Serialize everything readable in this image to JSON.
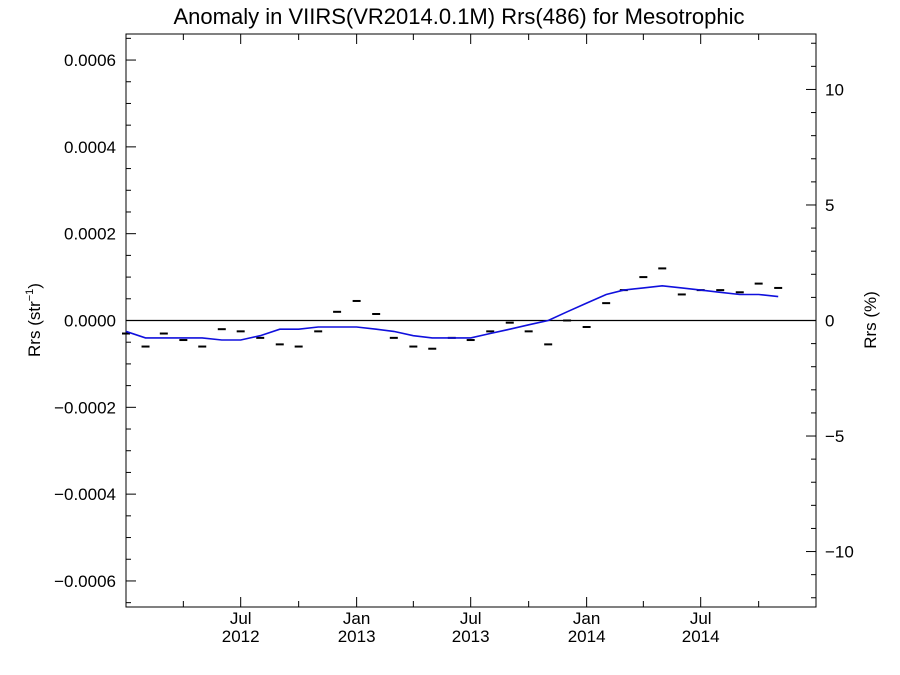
{
  "chart_data": {
    "type": "line",
    "title": "Anomaly in VIIRS(VR2014.0.1M) Rrs(486) for Mesotrophic",
    "ylabel": "Rrs (str",
    "ylabel_superscript": "−1",
    "ylabel_suffix": ")",
    "y2label": "Rrs (%)",
    "xlim": [
      "2012-01-01",
      "2014-12-31"
    ],
    "ylim": [
      -0.00066,
      0.00066
    ],
    "y2lim": [
      -12.4,
      12.4
    ],
    "grid": false,
    "zero_line": true,
    "yticks": [
      {
        "value": -0.0006,
        "label": "−0.0006"
      },
      {
        "value": -0.0004,
        "label": "−0.0004"
      },
      {
        "value": -0.0002,
        "label": "−0.0002"
      },
      {
        "value": 0.0,
        "label": "0.0000"
      },
      {
        "value": 0.0002,
        "label": "0.0002"
      },
      {
        "value": 0.0004,
        "label": "0.0004"
      },
      {
        "value": 0.0006,
        "label": "0.0006"
      }
    ],
    "y2ticks": [
      {
        "value": -10,
        "label": "−10"
      },
      {
        "value": -5,
        "label": "−5"
      },
      {
        "value": 0,
        "label": "0"
      },
      {
        "value": 5,
        "label": "5"
      },
      {
        "value": 10,
        "label": "10"
      }
    ],
    "xticks": [
      {
        "date": "2012-07-01",
        "month": "Jul",
        "year": "2012"
      },
      {
        "date": "2013-01-01",
        "month": "Jan",
        "year": "2013"
      },
      {
        "date": "2013-07-01",
        "month": "Jul",
        "year": "2013"
      },
      {
        "date": "2014-01-01",
        "month": "Jan",
        "year": "2014"
      },
      {
        "date": "2014-07-01",
        "month": "Jul",
        "year": "2014"
      }
    ],
    "series": [
      {
        "kind": "monthly_marks",
        "color": "#000000",
        "points": [
          {
            "x": "2012-01-01",
            "y": -3e-05
          },
          {
            "x": "2012-02-01",
            "y": -6e-05
          },
          {
            "x": "2012-03-01",
            "y": -3e-05
          },
          {
            "x": "2012-04-01",
            "y": -4.5e-05
          },
          {
            "x": "2012-05-01",
            "y": -6e-05
          },
          {
            "x": "2012-06-01",
            "y": -2e-05
          },
          {
            "x": "2012-07-01",
            "y": -2.5e-05
          },
          {
            "x": "2012-08-01",
            "y": -4e-05
          },
          {
            "x": "2012-09-01",
            "y": -5.5e-05
          },
          {
            "x": "2012-10-01",
            "y": -6e-05
          },
          {
            "x": "2012-11-01",
            "y": -2.5e-05
          },
          {
            "x": "2012-12-01",
            "y": 2e-05
          },
          {
            "x": "2013-01-01",
            "y": 4.5e-05
          },
          {
            "x": "2013-02-01",
            "y": 1.5e-05
          },
          {
            "x": "2013-03-01",
            "y": -4e-05
          },
          {
            "x": "2013-04-01",
            "y": -6e-05
          },
          {
            "x": "2013-05-01",
            "y": -6.5e-05
          },
          {
            "x": "2013-06-01",
            "y": -4e-05
          },
          {
            "x": "2013-07-01",
            "y": -4.5e-05
          },
          {
            "x": "2013-08-01",
            "y": -2.5e-05
          },
          {
            "x": "2013-09-01",
            "y": -5e-06
          },
          {
            "x": "2013-10-01",
            "y": -2.5e-05
          },
          {
            "x": "2013-11-01",
            "y": -5.5e-05
          },
          {
            "x": "2013-12-01",
            "y": 0.0
          },
          {
            "x": "2014-01-01",
            "y": -1.5e-05
          },
          {
            "x": "2014-02-01",
            "y": 4e-05
          },
          {
            "x": "2014-03-01",
            "y": 7e-05
          },
          {
            "x": "2014-04-01",
            "y": 0.0001
          },
          {
            "x": "2014-05-01",
            "y": 0.00012
          },
          {
            "x": "2014-06-01",
            "y": 6e-05
          },
          {
            "x": "2014-07-01",
            "y": 7e-05
          },
          {
            "x": "2014-08-01",
            "y": 7e-05
          },
          {
            "x": "2014-09-01",
            "y": 6.5e-05
          },
          {
            "x": "2014-10-01",
            "y": 8.5e-05
          },
          {
            "x": "2014-11-01",
            "y": 7.5e-05
          }
        ]
      },
      {
        "kind": "smoothed_line",
        "color": "#1010dd",
        "points": [
          {
            "x": "2012-01-01",
            "y": -2.5e-05
          },
          {
            "x": "2012-02-01",
            "y": -4e-05
          },
          {
            "x": "2012-03-01",
            "y": -4e-05
          },
          {
            "x": "2012-04-01",
            "y": -4e-05
          },
          {
            "x": "2012-05-01",
            "y": -4e-05
          },
          {
            "x": "2012-06-01",
            "y": -4.5e-05
          },
          {
            "x": "2012-07-01",
            "y": -4.5e-05
          },
          {
            "x": "2012-08-01",
            "y": -3.5e-05
          },
          {
            "x": "2012-09-01",
            "y": -2e-05
          },
          {
            "x": "2012-10-01",
            "y": -2e-05
          },
          {
            "x": "2012-11-01",
            "y": -1.5e-05
          },
          {
            "x": "2012-12-01",
            "y": -1.5e-05
          },
          {
            "x": "2013-01-01",
            "y": -1.5e-05
          },
          {
            "x": "2013-02-01",
            "y": -2e-05
          },
          {
            "x": "2013-03-01",
            "y": -2.5e-05
          },
          {
            "x": "2013-04-01",
            "y": -3.5e-05
          },
          {
            "x": "2013-05-01",
            "y": -4e-05
          },
          {
            "x": "2013-06-01",
            "y": -4e-05
          },
          {
            "x": "2013-07-01",
            "y": -4e-05
          },
          {
            "x": "2013-08-01",
            "y": -3e-05
          },
          {
            "x": "2013-09-01",
            "y": -2e-05
          },
          {
            "x": "2013-10-01",
            "y": -1e-05
          },
          {
            "x": "2013-11-01",
            "y": 0.0
          },
          {
            "x": "2013-12-01",
            "y": 2e-05
          },
          {
            "x": "2014-01-01",
            "y": 4e-05
          },
          {
            "x": "2014-02-01",
            "y": 6e-05
          },
          {
            "x": "2014-03-01",
            "y": 7e-05
          },
          {
            "x": "2014-04-01",
            "y": 7.5e-05
          },
          {
            "x": "2014-05-01",
            "y": 8e-05
          },
          {
            "x": "2014-06-01",
            "y": 7.5e-05
          },
          {
            "x": "2014-07-01",
            "y": 7e-05
          },
          {
            "x": "2014-08-01",
            "y": 6.5e-05
          },
          {
            "x": "2014-09-01",
            "y": 6e-05
          },
          {
            "x": "2014-10-01",
            "y": 6e-05
          },
          {
            "x": "2014-11-01",
            "y": 5.5e-05
          }
        ]
      }
    ]
  }
}
